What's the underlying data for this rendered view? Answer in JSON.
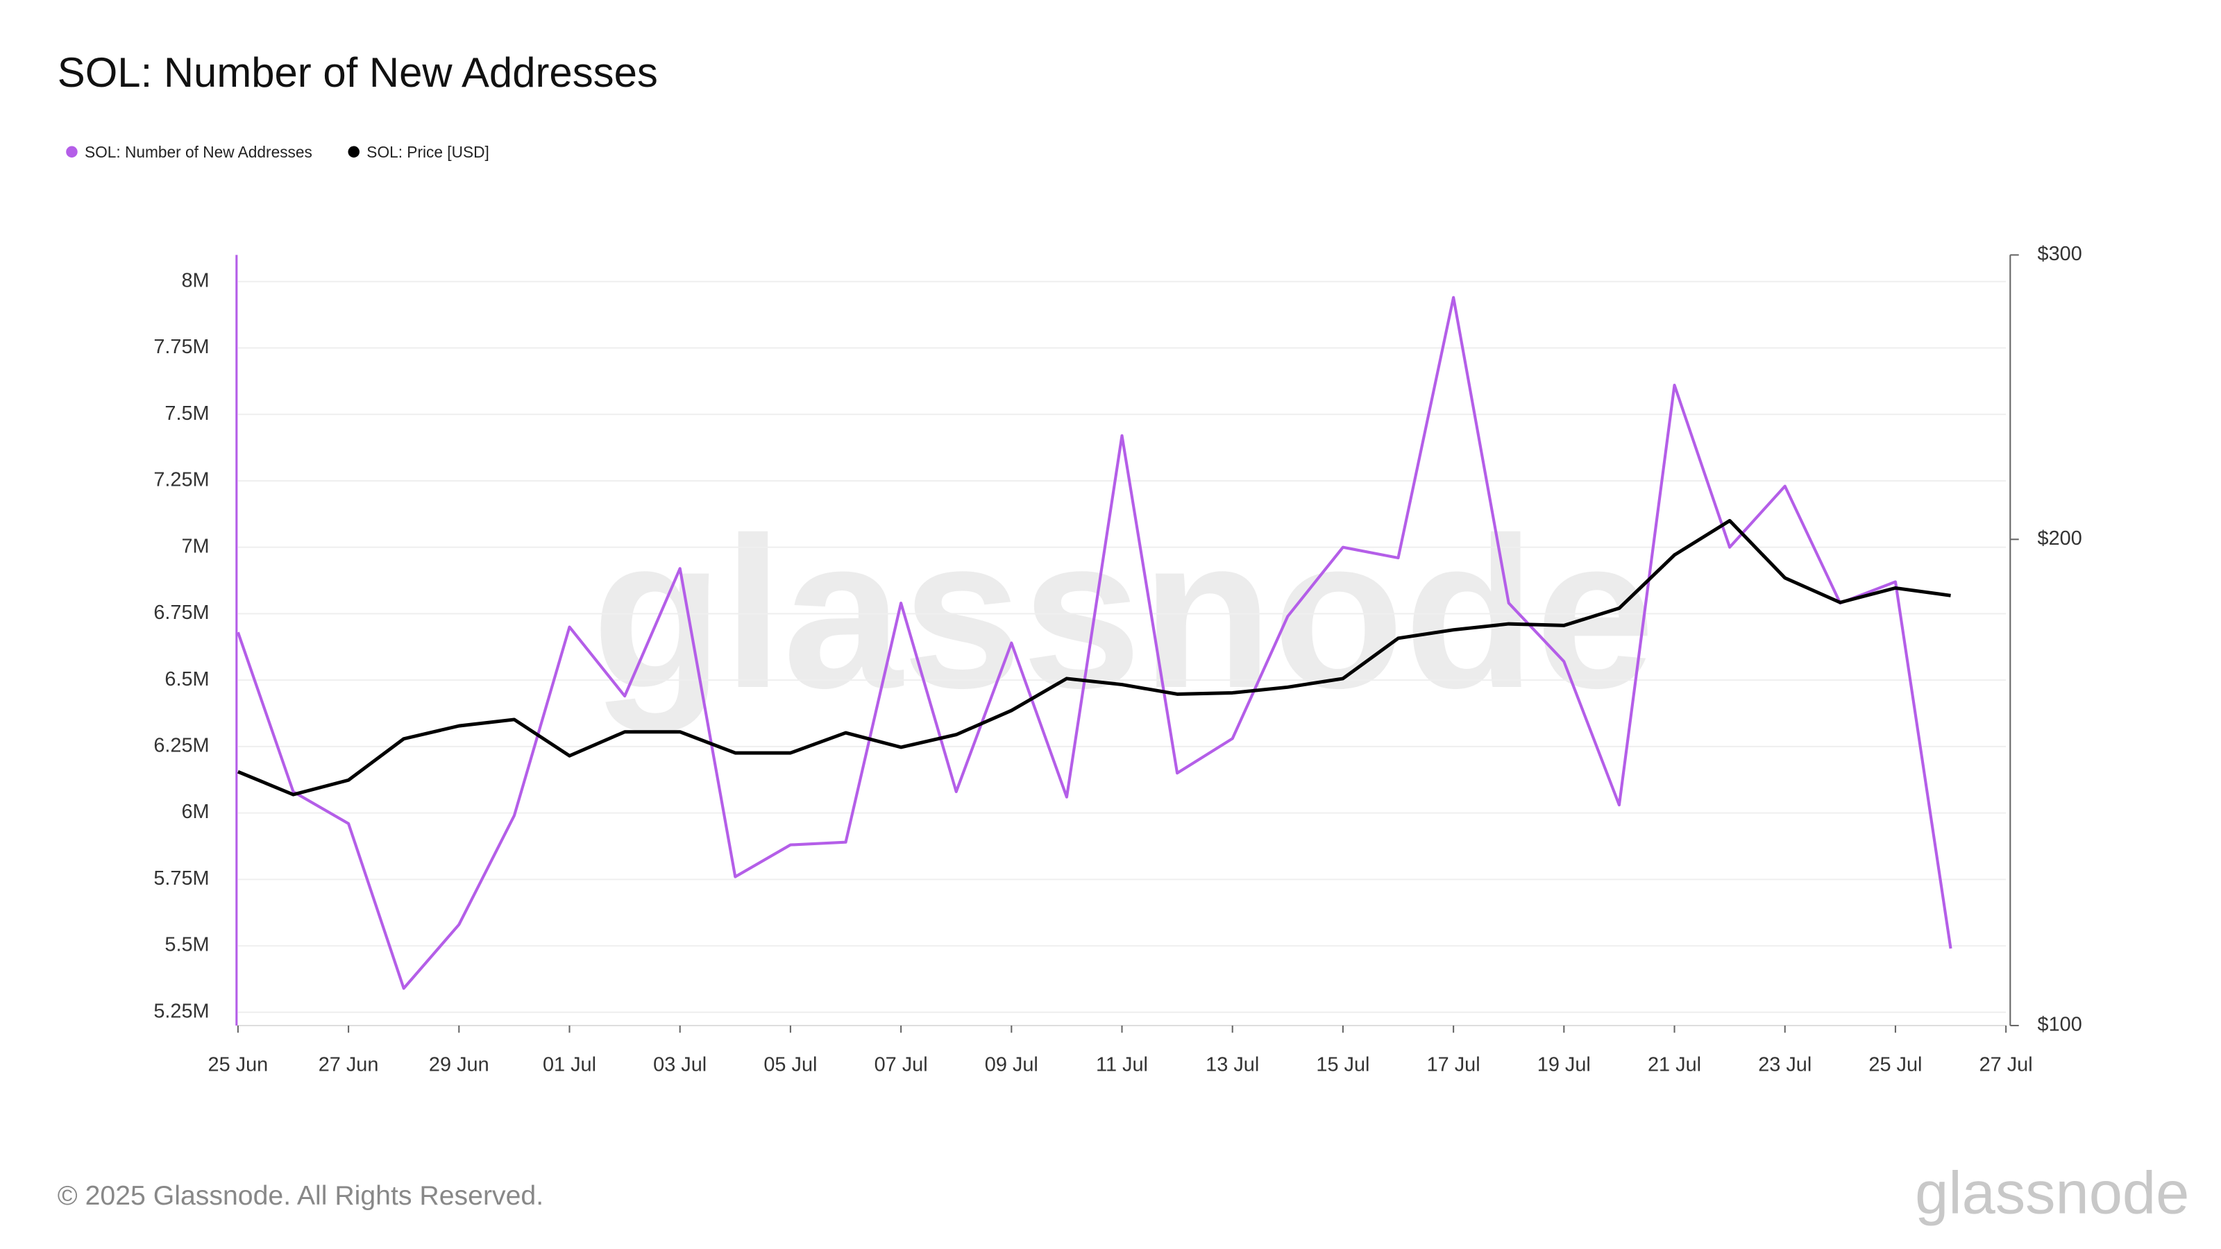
{
  "chart_data": {
    "type": "line",
    "title": "SOL: Number of New Addresses",
    "categories": [
      "25 Jun",
      null,
      "27 Jun",
      null,
      "29 Jun",
      null,
      "01 Jul",
      null,
      "03 Jul",
      null,
      "05 Jul",
      null,
      "07 Jul",
      null,
      "09 Jul",
      null,
      "11 Jul",
      null,
      "13 Jul",
      null,
      "15 Jul",
      null,
      "17 Jul",
      null,
      "19 Jul",
      null,
      "21 Jul",
      null,
      "23 Jul",
      null,
      "25 Jul",
      null,
      "27 Jul"
    ],
    "series": [
      {
        "name": "SOL: Number of New Addresses",
        "color": "#b45ee8",
        "values": [
          6680000,
          6080000,
          5960000,
          5340000,
          5580000,
          5990000,
          6700000,
          6440000,
          6920000,
          5760000,
          5880000,
          5890000,
          6790000,
          6080000,
          6640000,
          6060000,
          7420000,
          6150000,
          6280000,
          6740000,
          7000000,
          6960000,
          7940000,
          6790000,
          6570000,
          6030000,
          7610000,
          7000000,
          7230000,
          6790000,
          6870000,
          5490000,
          null
        ]
      },
      {
        "name": "SOL: Price [USD]",
        "color": "#000000",
        "axis": "y2",
        "values": [
          143.6,
          139,
          141.9,
          150.5,
          153.3,
          154.7,
          146.9,
          152,
          152,
          147.5,
          147.5,
          151.8,
          148.7,
          151.4,
          156.7,
          164,
          162.6,
          160.4,
          160.7,
          162,
          164,
          173.7,
          175.8,
          177.3,
          176.9,
          181.3,
          195.6,
          205.4,
          189.3,
          182.8,
          186.6,
          184.6,
          null
        ]
      }
    ],
    "ylim": [
      5200000,
      8100000
    ],
    "yticks": [
      {
        "value": 5250000,
        "label": "5.25M"
      },
      {
        "value": 5500000,
        "label": "5.5M"
      },
      {
        "value": 5750000,
        "label": "5.75M"
      },
      {
        "value": 6000000,
        "label": "6M"
      },
      {
        "value": 6250000,
        "label": "6.25M"
      },
      {
        "value": 6500000,
        "label": "6.5M"
      },
      {
        "value": 6750000,
        "label": "6.75M"
      },
      {
        "value": 7000000,
        "label": "7M"
      },
      {
        "value": 7250000,
        "label": "7.25M"
      },
      {
        "value": 7500000,
        "label": "7.5M"
      },
      {
        "value": 7750000,
        "label": "7.75M"
      },
      {
        "value": 8000000,
        "label": "8M"
      }
    ],
    "y2lim": [
      100,
      300
    ],
    "y2ticks": [
      {
        "value": 100,
        "label": "$100"
      },
      {
        "value": 200,
        "label": "$200"
      },
      {
        "value": 300,
        "label": "$300"
      }
    ],
    "y2log": true,
    "grid": true,
    "legend": "top-left",
    "copyright": "© 2025 Glassnode. All Rights Reserved.",
    "brand": "glassnode"
  }
}
